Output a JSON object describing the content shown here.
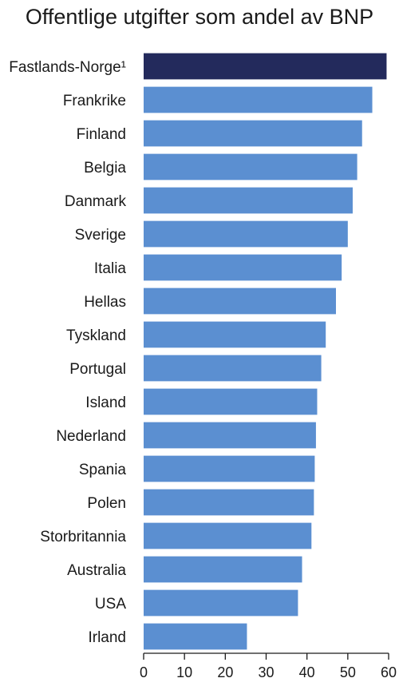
{
  "chart_data": {
    "type": "bar",
    "orientation": "horizontal",
    "title": "Offentlige utgifter som andel av BNP",
    "categories": [
      "Fastlands-Norge¹",
      "Frankrike",
      "Finland",
      "Belgia",
      "Danmark",
      "Sverige",
      "Italia",
      "Hellas",
      "Tyskland",
      "Portugal",
      "Island",
      "Nederland",
      "Spania",
      "Polen",
      "Storbritannia",
      "Australia",
      "USA",
      "Irland"
    ],
    "values": [
      59.5,
      56,
      53.5,
      52.3,
      51.2,
      50,
      48.5,
      47.1,
      44.6,
      43.5,
      42.5,
      42.2,
      41.9,
      41.7,
      41.1,
      38.8,
      37.8,
      25.3
    ],
    "highlight_index": 0,
    "colors": {
      "highlight": "#232a5c",
      "bar": "#5b8fd1",
      "axis": "#1a1a1a"
    },
    "xlim": [
      0,
      60
    ],
    "xticks": [
      0,
      10,
      20,
      30,
      40,
      50,
      60
    ],
    "xlabel": "",
    "ylabel": "",
    "grid": false
  }
}
